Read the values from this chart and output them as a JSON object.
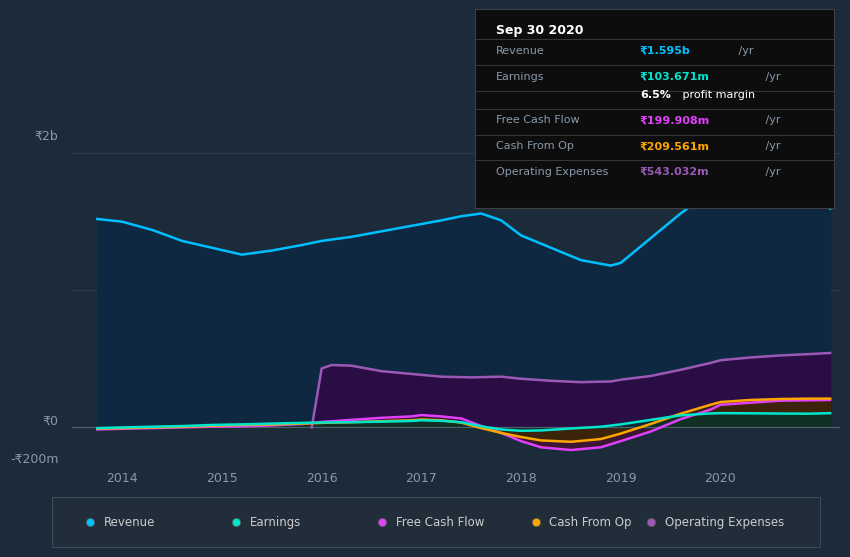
{
  "background_color": "#1c2b3a",
  "panel_bg": "#1c2b3a",
  "info_bg": "#0d0d0d",
  "legend_bg": "#222d3a",
  "ylabel_top": "₹2b",
  "ylabel_zero": "₹0",
  "ylabel_neg": "-₹200m",
  "x_labels": [
    "2014",
    "2015",
    "2016",
    "2017",
    "2018",
    "2019",
    "2020"
  ],
  "x_ticks": [
    2014,
    2015,
    2016,
    2017,
    2018,
    2019,
    2020
  ],
  "xlim": [
    2013.5,
    2021.2
  ],
  "ylim": [
    -280,
    2150
  ],
  "y_zero": 0,
  "y_top": 2000,
  "y_neg": -200,
  "legend_items": [
    {
      "label": "Revenue",
      "color": "#00bfff"
    },
    {
      "label": "Earnings",
      "color": "#00e5cc"
    },
    {
      "label": "Free Cash Flow",
      "color": "#e040fb"
    },
    {
      "label": "Cash From Op",
      "color": "#ffa500"
    },
    {
      "label": "Operating Expenses",
      "color": "#9b59b6"
    }
  ],
  "revenue_x": [
    2013.75,
    2014.0,
    2014.3,
    2014.6,
    2014.9,
    2015.2,
    2015.5,
    2015.8,
    2016.0,
    2016.3,
    2016.6,
    2016.9,
    2017.2,
    2017.4,
    2017.6,
    2017.8,
    2018.0,
    2018.3,
    2018.6,
    2018.9,
    2019.0,
    2019.3,
    2019.6,
    2019.9,
    2020.0,
    2020.3,
    2020.6,
    2020.9,
    2021.1
  ],
  "revenue_y": [
    1520,
    1500,
    1440,
    1360,
    1310,
    1260,
    1290,
    1330,
    1360,
    1390,
    1430,
    1470,
    1510,
    1540,
    1560,
    1510,
    1400,
    1310,
    1220,
    1180,
    1200,
    1380,
    1560,
    1720,
    1780,
    1870,
    1940,
    1850,
    1595
  ],
  "revenue_fill": "#0d2840",
  "revenue_color": "#00bfff",
  "opex_x": [
    2015.9,
    2016.0,
    2016.1,
    2016.3,
    2016.6,
    2016.9,
    2017.2,
    2017.5,
    2017.8,
    2018.0,
    2018.3,
    2018.6,
    2018.9,
    2019.0,
    2019.3,
    2019.6,
    2019.9,
    2020.0,
    2020.3,
    2020.6,
    2020.9,
    2021.1
  ],
  "opex_y": [
    0,
    430,
    455,
    450,
    410,
    390,
    370,
    365,
    370,
    355,
    340,
    330,
    335,
    348,
    375,
    420,
    470,
    490,
    510,
    525,
    535,
    543
  ],
  "opex_fill": "#2a0d45",
  "opex_color": "#9b59b6",
  "fcf_x": [
    2013.75,
    2014.0,
    2014.3,
    2014.6,
    2014.9,
    2015.2,
    2015.5,
    2015.8,
    2016.0,
    2016.3,
    2016.6,
    2016.9,
    2017.0,
    2017.2,
    2017.4,
    2017.6,
    2017.8,
    2018.0,
    2018.2,
    2018.5,
    2018.8,
    2019.0,
    2019.3,
    2019.6,
    2019.9,
    2020.0,
    2020.3,
    2020.6,
    2020.9,
    2021.1
  ],
  "fcf_y": [
    -15,
    -10,
    -5,
    0,
    5,
    8,
    15,
    25,
    40,
    55,
    70,
    80,
    90,
    80,
    65,
    10,
    -40,
    -100,
    -145,
    -165,
    -145,
    -100,
    -30,
    60,
    130,
    165,
    180,
    195,
    198,
    200
  ],
  "fcf_fill": "#5a1535",
  "fcf_color": "#e040fb",
  "cfo_x": [
    2013.75,
    2014.0,
    2014.3,
    2014.6,
    2014.9,
    2015.2,
    2015.5,
    2015.8,
    2016.0,
    2016.3,
    2016.6,
    2016.9,
    2017.0,
    2017.2,
    2017.4,
    2017.6,
    2017.8,
    2018.0,
    2018.2,
    2018.5,
    2018.8,
    2019.0,
    2019.3,
    2019.6,
    2019.9,
    2020.0,
    2020.3,
    2020.6,
    2020.9,
    2021.1
  ],
  "cfo_y": [
    -8,
    -5,
    0,
    5,
    12,
    18,
    22,
    28,
    33,
    38,
    45,
    52,
    58,
    52,
    35,
    -5,
    -40,
    -70,
    -95,
    -105,
    -85,
    -45,
    25,
    100,
    165,
    185,
    200,
    207,
    210,
    210
  ],
  "cfo_fill": "#3d2800",
  "cfo_color": "#ffa500",
  "earnings_x": [
    2013.75,
    2014.0,
    2014.3,
    2014.6,
    2014.9,
    2015.2,
    2015.5,
    2015.8,
    2016.0,
    2016.3,
    2016.6,
    2016.9,
    2017.0,
    2017.2,
    2017.4,
    2017.6,
    2017.8,
    2018.0,
    2018.2,
    2018.5,
    2018.8,
    2019.0,
    2019.3,
    2019.6,
    2019.9,
    2020.0,
    2020.3,
    2020.6,
    2020.9,
    2021.1
  ],
  "earnings_y": [
    -5,
    0,
    5,
    10,
    18,
    22,
    28,
    33,
    36,
    38,
    42,
    47,
    52,
    48,
    38,
    8,
    -15,
    -25,
    -22,
    -8,
    5,
    22,
    55,
    88,
    102,
    104,
    103,
    101,
    100,
    104
  ],
  "earnings_fill": "#003530",
  "earnings_color": "#00e5cc",
  "info_title": "Sep 30 2020",
  "info_rows": [
    {
      "label": "Revenue",
      "value": "₹1.595b",
      "suffix": " /yr",
      "vcolor": "#00bfff"
    },
    {
      "label": "Earnings",
      "value": "₹103.671m",
      "suffix": " /yr",
      "vcolor": "#00e5cc"
    },
    {
      "label": "",
      "value": "6.5%",
      "suffix": " profit margin",
      "vcolor": "#ffffff"
    },
    {
      "label": "Free Cash Flow",
      "value": "₹199.908m",
      "suffix": " /yr",
      "vcolor": "#e040fb"
    },
    {
      "label": "Cash From Op",
      "value": "₹209.561m",
      "suffix": " /yr",
      "vcolor": "#ffa500"
    },
    {
      "label": "Operating Expenses",
      "value": "₹543.032m",
      "suffix": " /yr",
      "vcolor": "#9b59b6"
    }
  ],
  "grid_color": "#2e3f50",
  "zero_line_color": "#4a5f72",
  "axis_label_color": "#8899aa",
  "tick_label_color": "#8899aa",
  "border_color": "#3a4a5a"
}
